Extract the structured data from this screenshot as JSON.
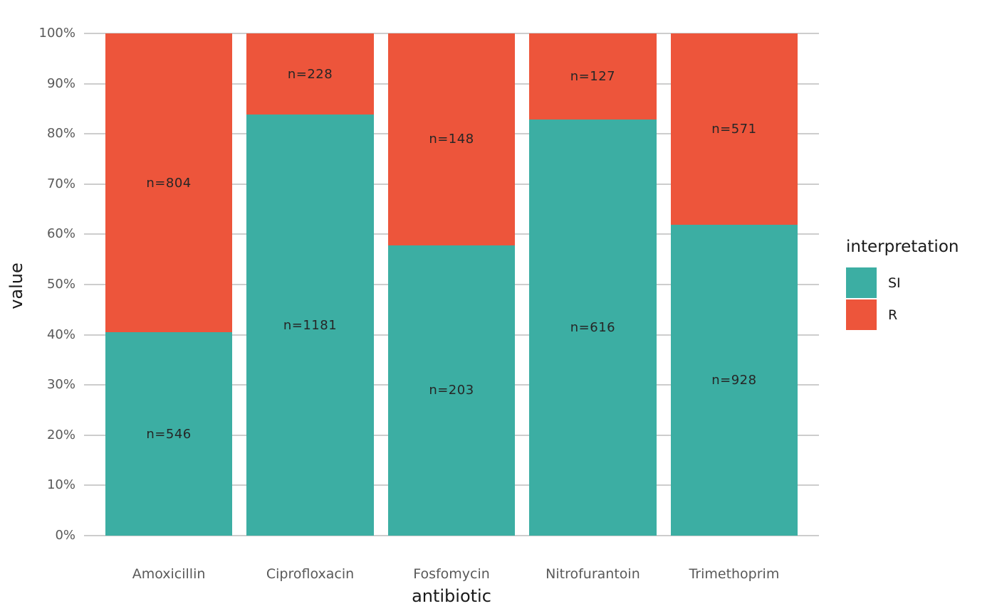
{
  "chart_data": {
    "type": "bar",
    "subtype": "stacked-percent",
    "title": "",
    "xlabel": "antibiotic",
    "ylabel": "value",
    "categories": [
      "Amoxicillin",
      "Ciprofloxacin",
      "Fosfomycin",
      "Nitrofurantoin",
      "Trimethoprim"
    ],
    "series": [
      {
        "name": "SI",
        "color": "#3CAEA3",
        "counts": [
          546,
          1181,
          203,
          616,
          928
        ],
        "labels": [
          "n=546",
          "n=1181",
          "n=203",
          "n=616",
          "n=928"
        ]
      },
      {
        "name": "R",
        "color": "#ED553B",
        "counts": [
          804,
          228,
          148,
          127,
          571
        ],
        "labels": [
          "n=804",
          "n=228",
          "n=148",
          "n=127",
          "n=571"
        ]
      }
    ],
    "stack_order_top_to_bottom": [
      "R",
      "SI"
    ],
    "y_ticks": [
      "0%",
      "10%",
      "20%",
      "30%",
      "40%",
      "50%",
      "60%",
      "70%",
      "80%",
      "90%",
      "100%"
    ],
    "ylim": [
      0,
      100
    ],
    "grid": true,
    "gridline_color": "#CDCDCD",
    "background_color": "#FFFFFF",
    "legend": {
      "title": "interpretation",
      "position": "right",
      "entries": [
        {
          "label": "SI",
          "color": "#3CAEA3"
        },
        {
          "label": "R",
          "color": "#ED553B"
        }
      ]
    }
  }
}
